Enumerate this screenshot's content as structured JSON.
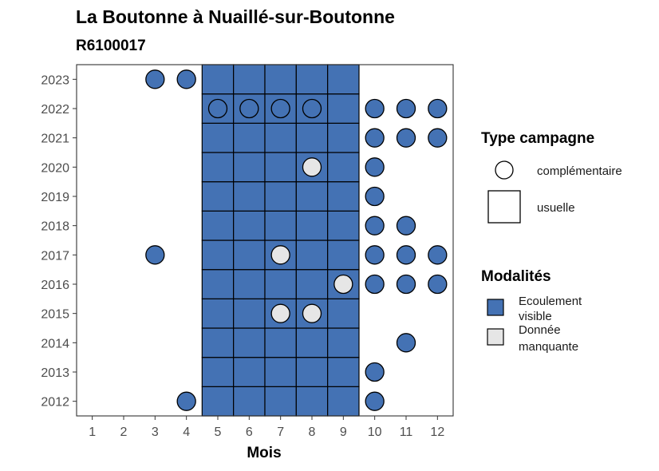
{
  "title": "La Boutonne à Nuaillé-sur-Boutonne",
  "subtitle": "R6100017",
  "colors": {
    "Ecoulement visible": "#4472b4",
    "Donnée manquante": "#e6e6e6",
    "cell_border": "#000000",
    "panel_border": "#333333"
  },
  "chart_data": {
    "type": "heatmap",
    "xlabel": "Mois",
    "ylabel": "",
    "x_ticks": [
      "1",
      "2",
      "3",
      "4",
      "5",
      "6",
      "7",
      "8",
      "9",
      "10",
      "11",
      "12"
    ],
    "y_ticks": [
      "2012",
      "2013",
      "2014",
      "2015",
      "2016",
      "2017",
      "2018",
      "2019",
      "2020",
      "2021",
      "2022",
      "2023"
    ],
    "xlim": [
      0.5,
      12.5
    ],
    "ylim": [
      2011.5,
      2023.5
    ],
    "grid": false,
    "legend_position": "right",
    "usuelle_months": [
      5,
      6,
      7,
      8,
      9
    ],
    "usuelle_years": [
      2012,
      2013,
      2014,
      2015,
      2016,
      2017,
      2018,
      2019,
      2020,
      2021,
      2022,
      2023
    ],
    "complementaire": [
      {
        "year": 2023,
        "month": 3,
        "modalite": "Ecoulement visible"
      },
      {
        "year": 2023,
        "month": 4,
        "modalite": "Ecoulement visible"
      },
      {
        "year": 2022,
        "month": 5,
        "modalite": "Ecoulement visible"
      },
      {
        "year": 2022,
        "month": 6,
        "modalite": "Ecoulement visible"
      },
      {
        "year": 2022,
        "month": 7,
        "modalite": "Ecoulement visible"
      },
      {
        "year": 2022,
        "month": 8,
        "modalite": "Ecoulement visible"
      },
      {
        "year": 2022,
        "month": 10,
        "modalite": "Ecoulement visible"
      },
      {
        "year": 2022,
        "month": 11,
        "modalite": "Ecoulement visible"
      },
      {
        "year": 2022,
        "month": 12,
        "modalite": "Ecoulement visible"
      },
      {
        "year": 2021,
        "month": 10,
        "modalite": "Ecoulement visible"
      },
      {
        "year": 2021,
        "month": 11,
        "modalite": "Ecoulement visible"
      },
      {
        "year": 2021,
        "month": 12,
        "modalite": "Ecoulement visible"
      },
      {
        "year": 2020,
        "month": 8,
        "modalite": "Donnée manquante"
      },
      {
        "year": 2020,
        "month": 10,
        "modalite": "Ecoulement visible"
      },
      {
        "year": 2019,
        "month": 10,
        "modalite": "Ecoulement visible"
      },
      {
        "year": 2018,
        "month": 10,
        "modalite": "Ecoulement visible"
      },
      {
        "year": 2018,
        "month": 11,
        "modalite": "Ecoulement visible"
      },
      {
        "year": 2017,
        "month": 3,
        "modalite": "Ecoulement visible"
      },
      {
        "year": 2017,
        "month": 7,
        "modalite": "Donnée manquante"
      },
      {
        "year": 2017,
        "month": 10,
        "modalite": "Ecoulement visible"
      },
      {
        "year": 2017,
        "month": 11,
        "modalite": "Ecoulement visible"
      },
      {
        "year": 2017,
        "month": 12,
        "modalite": "Ecoulement visible"
      },
      {
        "year": 2016,
        "month": 9,
        "modalite": "Donnée manquante"
      },
      {
        "year": 2016,
        "month": 10,
        "modalite": "Ecoulement visible"
      },
      {
        "year": 2016,
        "month": 11,
        "modalite": "Ecoulement visible"
      },
      {
        "year": 2016,
        "month": 12,
        "modalite": "Ecoulement visible"
      },
      {
        "year": 2015,
        "month": 7,
        "modalite": "Donnée manquante"
      },
      {
        "year": 2015,
        "month": 8,
        "modalite": "Donnée manquante"
      },
      {
        "year": 2014,
        "month": 11,
        "modalite": "Ecoulement visible"
      },
      {
        "year": 2013,
        "month": 10,
        "modalite": "Ecoulement visible"
      },
      {
        "year": 2012,
        "month": 4,
        "modalite": "Ecoulement visible"
      },
      {
        "year": 2012,
        "month": 10,
        "modalite": "Ecoulement visible"
      }
    ],
    "legend": {
      "type_title": "Type campagne",
      "type_items": [
        "complémentaire",
        "usuelle"
      ],
      "modalites_title": "Modalités",
      "modalites_items": [
        {
          "line1": "Ecoulement",
          "line2": "visible",
          "key": "Ecoulement visible"
        },
        {
          "line1": "Donnée",
          "line2": "manquante",
          "key": "Donnée manquante"
        }
      ]
    }
  }
}
